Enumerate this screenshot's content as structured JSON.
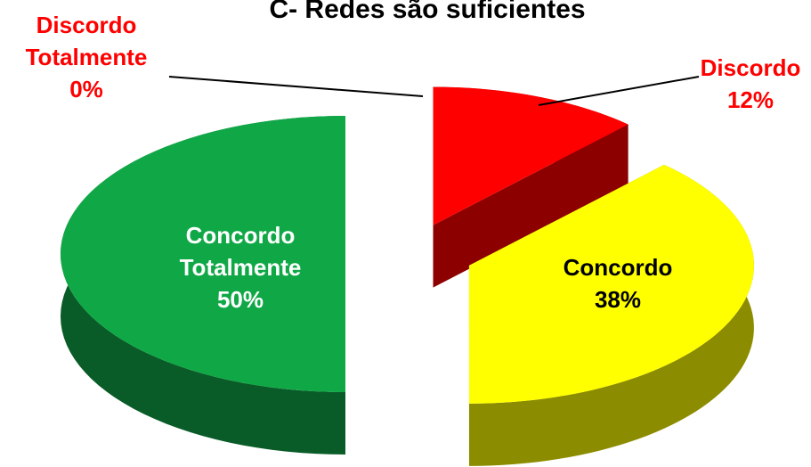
{
  "chart_data": {
    "type": "pie",
    "title": "C- Redes são suficientes",
    "categories": [
      "Discordo Totalmente",
      "Discordo",
      "Concordo",
      "Concordo Totalmente"
    ],
    "values": [
      0,
      12,
      38,
      50
    ],
    "value_labels": [
      "0%",
      "12%",
      "38%",
      "50%"
    ],
    "colors": [
      "#ff0000",
      "#ff0000",
      "#ffff00",
      "#10a846"
    ]
  }
}
